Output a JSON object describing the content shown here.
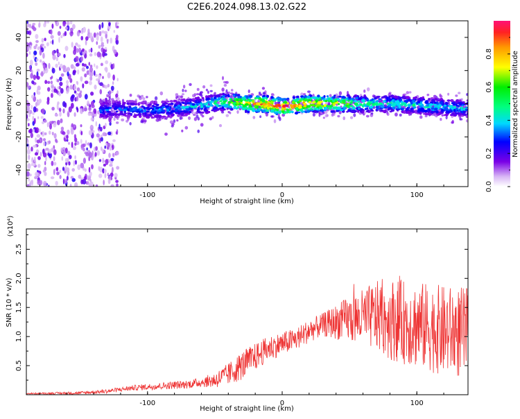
{
  "chart_data": [
    {
      "type": "heatmap",
      "title": "C2E6.2024.098.13.02.G22",
      "xlabel": "Height of straight line (km)",
      "ylabel": "Frequency (Hz)",
      "xlim": [
        -190,
        138
      ],
      "ylim": [
        -50,
        50
      ],
      "xticks": [
        -100,
        0,
        100
      ],
      "yticks": [
        -40,
        -20,
        0,
        20,
        40
      ],
      "colorbar": {
        "label": "Normalized spectral amplitude",
        "range": [
          0,
          1
        ],
        "ticks": [
          0.0,
          0.2,
          0.4,
          0.6,
          0.8
        ]
      },
      "ridge": {
        "x": [
          -135,
          -120,
          -100,
          -80,
          -60,
          -45,
          -35,
          -25,
          -15,
          -5,
          0,
          10,
          20,
          30,
          40,
          60,
          80,
          100,
          120,
          138
        ],
        "freq": [
          -4,
          -3,
          -4,
          -3,
          -1,
          1,
          1,
          0,
          0,
          -1,
          -2,
          -1,
          0,
          0,
          0,
          0,
          0,
          -1,
          -2,
          -3
        ],
        "amplitude": [
          0.35,
          0.35,
          0.38,
          0.4,
          0.45,
          0.6,
          0.75,
          0.85,
          0.95,
          1.0,
          0.98,
          0.95,
          0.9,
          0.85,
          0.8,
          0.55,
          0.5,
          0.48,
          0.45,
          0.42
        ]
      },
      "noise_region": {
        "x": [
          -190,
          -130
        ],
        "amplitude": 0.3
      }
    },
    {
      "type": "line",
      "xlabel": "Height of straight line (km)",
      "ylabel": "SNR (10 * v/v)",
      "y_multiplier": "(x10⁴)",
      "xlim": [
        -190,
        138
      ],
      "ylim": [
        0,
        2.85
      ],
      "xticks": [
        -100,
        0,
        100
      ],
      "yticks": [
        0.5,
        1.0,
        1.5,
        2.0,
        2.5
      ],
      "color": "#ee3333",
      "envelope": {
        "x": [
          -190,
          -150,
          -130,
          -110,
          -90,
          -70,
          -50,
          -40,
          -30,
          -20,
          -10,
          0,
          10,
          20,
          30,
          40,
          50,
          60,
          70,
          80,
          90,
          100,
          110,
          120,
          138
        ],
        "y": [
          0.02,
          0.03,
          0.06,
          0.12,
          0.15,
          0.18,
          0.25,
          0.35,
          0.5,
          0.65,
          0.8,
          0.88,
          0.95,
          1.1,
          1.2,
          1.25,
          1.3,
          1.32,
          1.35,
          1.3,
          1.25,
          1.2,
          1.15,
          1.1,
          1.05
        ]
      },
      "spread": {
        "x": [
          -190,
          -120,
          -60,
          -30,
          0,
          30,
          60,
          80,
          100,
          138
        ],
        "y": [
          0.01,
          0.04,
          0.08,
          0.25,
          0.2,
          0.2,
          0.5,
          0.7,
          0.75,
          0.8
        ]
      }
    }
  ]
}
